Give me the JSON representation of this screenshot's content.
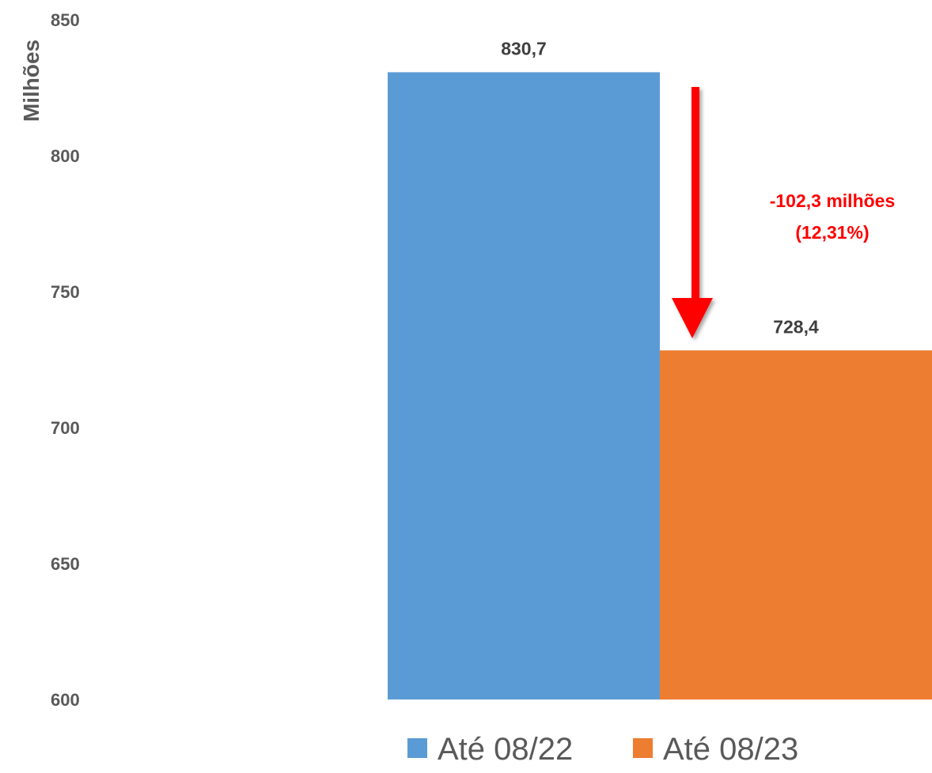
{
  "chart_data": {
    "type": "bar",
    "title": "",
    "xlabel": "",
    "ylabel": "Milhões",
    "ylim": [
      600,
      850
    ],
    "yticks": [
      600,
      650,
      700,
      750,
      800,
      850
    ],
    "grid": false,
    "legend_position": "bottom",
    "series": [
      {
        "name": "Até 08/22",
        "value": 830.7,
        "label": "830,7",
        "color": "#5B9BD5"
      },
      {
        "name": "Até 08/23",
        "value": 728.4,
        "label": "728,4",
        "color": "#ED7D31"
      }
    ],
    "annotation": {
      "lines": [
        "-102,3 milhões",
        "(12,31%)"
      ],
      "color": "#FF0000",
      "arrow_direction": "down"
    }
  }
}
